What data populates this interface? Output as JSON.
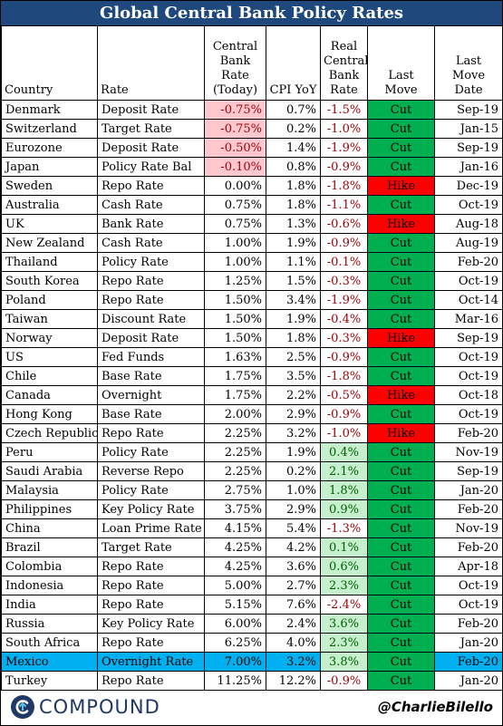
{
  "title": "Global Central Bank Policy Rates",
  "headers": {
    "country": "Country",
    "rate": "Rate",
    "cb_rate": "Central Bank Rate (Today)",
    "cpi": "CPI YoY",
    "real_rate": "Real Central Bank Rate",
    "last_move": "Last Move",
    "last_move_date": "Last Move Date"
  },
  "rows": [
    {
      "country": "Denmark",
      "rate": "Deposit Rate",
      "cb_rate": "-0.75%",
      "cpi": "0.7%",
      "real_rate": "-1.5%",
      "last_move": "Cut",
      "date": "Sep-19"
    },
    {
      "country": "Switzerland",
      "rate": "Target Rate",
      "cb_rate": "-0.75%",
      "cpi": "0.2%",
      "real_rate": "-1.0%",
      "last_move": "Cut",
      "date": "Jan-15"
    },
    {
      "country": "Eurozone",
      "rate": "Deposit Rate",
      "cb_rate": "-0.50%",
      "cpi": "1.4%",
      "real_rate": "-1.9%",
      "last_move": "Cut",
      "date": "Sep-19"
    },
    {
      "country": "Japan",
      "rate": "Policy Rate Bal",
      "cb_rate": "-0.10%",
      "cpi": "0.8%",
      "real_rate": "-0.9%",
      "last_move": "Cut",
      "date": "Jan-16"
    },
    {
      "country": "Sweden",
      "rate": "Repo Rate",
      "cb_rate": "0.00%",
      "cpi": "1.8%",
      "real_rate": "-1.8%",
      "last_move": "Hike",
      "date": "Dec-19"
    },
    {
      "country": "Australia",
      "rate": "Cash Rate",
      "cb_rate": "0.75%",
      "cpi": "1.8%",
      "real_rate": "-1.1%",
      "last_move": "Cut",
      "date": "Oct-19"
    },
    {
      "country": "UK",
      "rate": "Bank Rate",
      "cb_rate": "0.75%",
      "cpi": "1.3%",
      "real_rate": "-0.6%",
      "last_move": "Hike",
      "date": "Aug-18"
    },
    {
      "country": "New Zealand",
      "rate": "Cash Rate",
      "cb_rate": "1.00%",
      "cpi": "1.9%",
      "real_rate": "-0.9%",
      "last_move": "Cut",
      "date": "Aug-19"
    },
    {
      "country": "Thailand",
      "rate": "Policy Rate",
      "cb_rate": "1.00%",
      "cpi": "1.1%",
      "real_rate": "-0.1%",
      "last_move": "Cut",
      "date": "Feb-20"
    },
    {
      "country": "South Korea",
      "rate": "Repo Rate",
      "cb_rate": "1.25%",
      "cpi": "1.5%",
      "real_rate": "-0.3%",
      "last_move": "Cut",
      "date": "Oct-19"
    },
    {
      "country": "Poland",
      "rate": "Repo Rate",
      "cb_rate": "1.50%",
      "cpi": "3.4%",
      "real_rate": "-1.9%",
      "last_move": "Cut",
      "date": "Oct-14"
    },
    {
      "country": "Taiwan",
      "rate": "Discount Rate",
      "cb_rate": "1.50%",
      "cpi": "1.9%",
      "real_rate": "-0.4%",
      "last_move": "Cut",
      "date": "Mar-16"
    },
    {
      "country": "Norway",
      "rate": "Deposit Rate",
      "cb_rate": "1.50%",
      "cpi": "1.8%",
      "real_rate": "-0.3%",
      "last_move": "Hike",
      "date": "Sep-19"
    },
    {
      "country": "US",
      "rate": "Fed Funds",
      "cb_rate": "1.63%",
      "cpi": "2.5%",
      "real_rate": "-0.9%",
      "last_move": "Cut",
      "date": "Oct-19"
    },
    {
      "country": "Chile",
      "rate": "Base Rate",
      "cb_rate": "1.75%",
      "cpi": "3.5%",
      "real_rate": "-1.8%",
      "last_move": "Cut",
      "date": "Oct-19"
    },
    {
      "country": "Canada",
      "rate": "Overnight",
      "cb_rate": "1.75%",
      "cpi": "2.2%",
      "real_rate": "-0.5%",
      "last_move": "Hike",
      "date": "Oct-18"
    },
    {
      "country": "Hong Kong",
      "rate": "Base Rate",
      "cb_rate": "2.00%",
      "cpi": "2.9%",
      "real_rate": "-0.9%",
      "last_move": "Cut",
      "date": "Oct-19"
    },
    {
      "country": "Czech Republic",
      "rate": "Repo Rate",
      "cb_rate": "2.25%",
      "cpi": "3.2%",
      "real_rate": "-1.0%",
      "last_move": "Hike",
      "date": "Feb-20"
    },
    {
      "country": "Peru",
      "rate": "Policy Rate",
      "cb_rate": "2.25%",
      "cpi": "1.9%",
      "real_rate": "0.4%",
      "last_move": "Cut",
      "date": "Nov-19"
    },
    {
      "country": "Saudi Arabia",
      "rate": "Reverse Repo",
      "cb_rate": "2.25%",
      "cpi": "0.2%",
      "real_rate": "2.1%",
      "last_move": "Cut",
      "date": "Sep-19"
    },
    {
      "country": "Malaysia",
      "rate": "Policy Rate",
      "cb_rate": "2.75%",
      "cpi": "1.0%",
      "real_rate": "1.8%",
      "last_move": "Cut",
      "date": "Jan-20"
    },
    {
      "country": "Philippines",
      "rate": "Key Policy Rate",
      "cb_rate": "3.75%",
      "cpi": "2.9%",
      "real_rate": "0.9%",
      "last_move": "Cut",
      "date": "Feb-20"
    },
    {
      "country": "China",
      "rate": "Loan Prime Rate",
      "cb_rate": "4.15%",
      "cpi": "5.4%",
      "real_rate": "-1.3%",
      "last_move": "Cut",
      "date": "Nov-19"
    },
    {
      "country": "Brazil",
      "rate": "Target Rate",
      "cb_rate": "4.25%",
      "cpi": "4.2%",
      "real_rate": "0.1%",
      "last_move": "Cut",
      "date": "Feb-20"
    },
    {
      "country": "Colombia",
      "rate": "Repo Rate",
      "cb_rate": "4.25%",
      "cpi": "3.6%",
      "real_rate": "0.6%",
      "last_move": "Cut",
      "date": "Apr-18"
    },
    {
      "country": "Indonesia",
      "rate": "Repo Rate",
      "cb_rate": "5.00%",
      "cpi": "2.7%",
      "real_rate": "2.3%",
      "last_move": "Cut",
      "date": "Oct-19"
    },
    {
      "country": "India",
      "rate": "Repo Rate",
      "cb_rate": "5.15%",
      "cpi": "7.6%",
      "real_rate": "-2.4%",
      "last_move": "Cut",
      "date": "Oct-19"
    },
    {
      "country": "Russia",
      "rate": "Key Policy Rate",
      "cb_rate": "6.00%",
      "cpi": "2.4%",
      "real_rate": "3.6%",
      "last_move": "Cut",
      "date": "Feb-20"
    },
    {
      "country": "South Africa",
      "rate": "Repo Rate",
      "cb_rate": "6.25%",
      "cpi": "4.0%",
      "real_rate": "2.3%",
      "last_move": "Cut",
      "date": "Jan-20"
    },
    {
      "country": "Mexico",
      "rate": "Overnight Rate",
      "cb_rate": "7.00%",
      "cpi": "3.2%",
      "real_rate": "3.8%",
      "last_move": "Cut",
      "date": "Feb-20",
      "highlight": true
    },
    {
      "country": "Turkey",
      "rate": "Repo Rate",
      "cb_rate": "11.25%",
      "cpi": "12.2%",
      "real_rate": "-0.9%",
      "last_move": "Cut",
      "date": "Jan-20"
    }
  ],
  "colors": {
    "header_bg": "#1f497d",
    "negative_fill": "#ffc7ce",
    "positive_fill": "#c6efce",
    "cut": "#00b050",
    "hike": "#ff0000",
    "highlight_row": "#00b0f0"
  },
  "footer": {
    "logo_text": "COMPOUND",
    "logo_icon": "compound-logo-icon",
    "handle": "@CharlieBilello"
  }
}
